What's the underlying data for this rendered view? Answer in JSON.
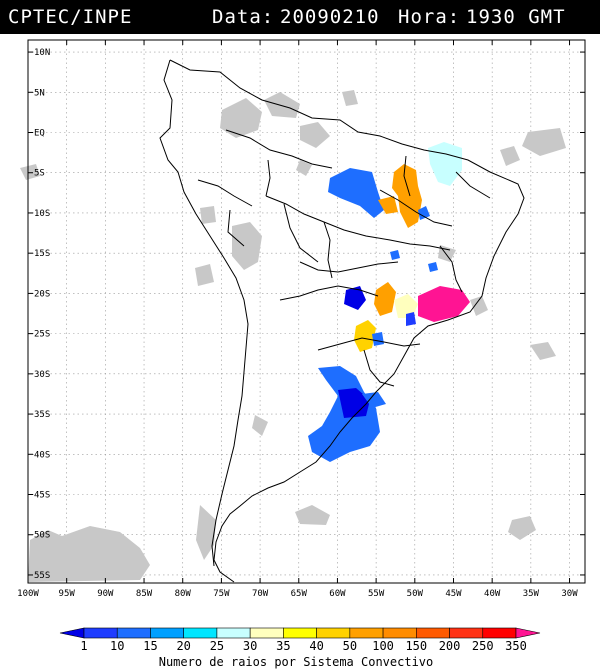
{
  "header": {
    "source": "CPTEC/INPE",
    "data_label": "Data:",
    "date": "20090210",
    "hora_label": "Hora:",
    "time": "1930 GMT"
  },
  "map": {
    "lat_ticks": [
      "10N",
      "5N",
      "EQ",
      "5S",
      "10S",
      "15S",
      "20S",
      "25S",
      "30S",
      "35S",
      "40S",
      "45S",
      "50S",
      "55S"
    ],
    "lon_ticks": [
      "100W",
      "95W",
      "90W",
      "85W",
      "80W",
      "75W",
      "70W",
      "65W",
      "60W",
      "55W",
      "50W",
      "45W",
      "40W",
      "35W",
      "30W"
    ],
    "lon_range": [
      -100,
      -28
    ],
    "lat_range": [
      11.5,
      -56
    ]
  },
  "legend": {
    "labels": [
      "1",
      "10",
      "15",
      "20",
      "25",
      "30",
      "35",
      "40",
      "50",
      "100",
      "150",
      "200",
      "250",
      "350"
    ],
    "colors": [
      "#0000e6",
      "#1e3cff",
      "#1e6eff",
      "#00a0ff",
      "#00e6ff",
      "#c8ffff",
      "#ffffbe",
      "#ffff00",
      "#ffd200",
      "#ffa000",
      "#ff8c00",
      "#ff5a00",
      "#ff3214",
      "#ff0000",
      "#ff1493"
    ],
    "title": "Numero de raios por Sistema Convectivo"
  }
}
